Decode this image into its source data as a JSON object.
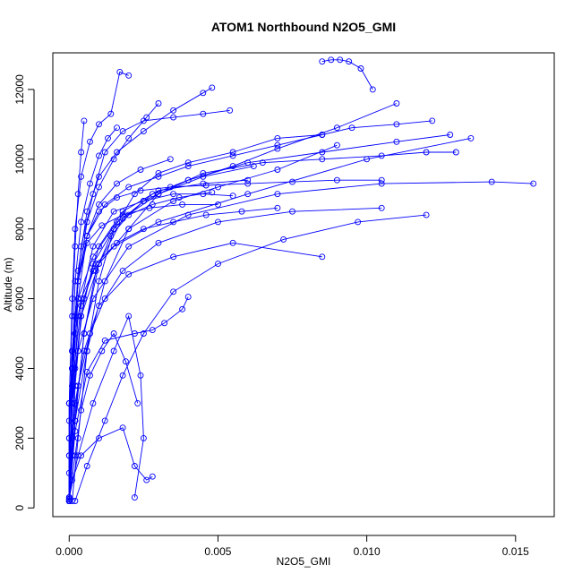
{
  "chart_data": {
    "type": "line",
    "title": "ATOM1 Northbound N2O5_GMI",
    "xlabel": "N2O5_GMI",
    "ylabel": "Altitude (m)",
    "xlim": [
      -0.00055,
      0.0163
    ],
    "ylim": [
      -250,
      13050
    ],
    "x_ticks": [
      0.0,
      0.005,
      0.01,
      0.015
    ],
    "x_tick_labels": [
      "0.000",
      "0.005",
      "0.010",
      "0.015"
    ],
    "y_ticks": [
      0,
      2000,
      4000,
      6000,
      8000,
      10000,
      12000
    ],
    "y_tick_labels": [
      "0",
      "2000",
      "4000",
      "6000",
      "8000",
      "10000",
      "12000"
    ],
    "grid": false,
    "legend": "none",
    "marker": "open-circle",
    "color": "#0000ff",
    "series": [
      {
        "x": [
          0.0,
          0.0,
          0.0,
          0.0,
          0.0001,
          0.0002,
          0.0004,
          0.0008,
          0.0015,
          0.003,
          0.006,
          0.01,
          0.0135
        ],
        "y": [
          200,
          1000,
          2000,
          3000,
          4000,
          5000,
          6000,
          6800,
          7500,
          8200,
          9000,
          10000,
          10600
        ]
      },
      {
        "x": [
          0.0,
          0.0,
          0.0001,
          0.0003,
          0.0008,
          0.002,
          0.004,
          0.007,
          0.0105,
          0.0142,
          0.0156
        ],
        "y": [
          300,
          1500,
          3000,
          4500,
          6000,
          7500,
          8400,
          9000,
          9300,
          9350,
          9300
        ]
      },
      {
        "x": [
          0.0,
          0.0001,
          0.0003,
          0.0007,
          0.0012,
          0.0018,
          0.003,
          0.005,
          0.0075,
          0.0105
        ],
        "y": [
          200,
          2000,
          3500,
          5000,
          6000,
          6800,
          7600,
          8200,
          8500,
          8600
        ]
      },
      {
        "x": [
          0.0002,
          0.0006,
          0.0012,
          0.0018,
          0.0025,
          0.0035,
          0.005,
          0.0072,
          0.0097,
          0.012
        ],
        "y": [
          200,
          1200,
          2500,
          3800,
          5000,
          6200,
          7000,
          7700,
          8200,
          8400
        ]
      },
      {
        "x": [
          0.0,
          0.0,
          0.0002,
          0.0005,
          0.001,
          0.002,
          0.0035,
          0.0055,
          0.0085
        ],
        "y": [
          200,
          1500,
          3000,
          4500,
          5800,
          6700,
          7200,
          7600,
          7200
        ]
      },
      {
        "x": [
          0.0,
          0.0001,
          0.0004,
          0.001,
          0.0018,
          0.0022,
          0.0026,
          0.0028
        ],
        "y": [
          300,
          800,
          1500,
          2000,
          2300,
          1200,
          800,
          900
        ]
      },
      {
        "x": [
          0.0,
          0.0003,
          0.0008,
          0.0015,
          0.002,
          0.0024,
          0.0025,
          0.0022
        ],
        "y": [
          300,
          1500,
          3000,
          4500,
          5500,
          3800,
          2000,
          300
        ]
      },
      {
        "x": [
          0.0,
          0.0002,
          0.0006,
          0.0012,
          0.0022,
          0.0028,
          0.0032,
          0.0038,
          0.004
        ],
        "y": [
          200,
          2200,
          3900,
          4800,
          5000,
          5100,
          5300,
          5700,
          6050
        ]
      },
      {
        "x": [
          0.0,
          0.0,
          0.0001,
          0.0003,
          0.0008,
          0.0016,
          0.003,
          0.0045,
          0.0062
        ],
        "y": [
          200,
          2500,
          4500,
          6000,
          7200,
          8200,
          9000,
          9500,
          9800
        ]
      },
      {
        "x": [
          0.0,
          0.0001,
          0.0004,
          0.001,
          0.002,
          0.0035,
          0.005,
          0.007,
          0.009
        ],
        "y": [
          300,
          3000,
          5500,
          7000,
          8000,
          8800,
          9200,
          9700,
          10400
        ]
      },
      {
        "x": [
          0.0,
          0.0002,
          0.0006,
          0.0012,
          0.002,
          0.003,
          0.0045,
          0.0065,
          0.0085,
          0.0105,
          0.012,
          0.013
        ],
        "y": [
          200,
          2500,
          4500,
          6500,
          8000,
          9000,
          9600,
          9900,
          10000,
          10100,
          10200,
          10200
        ]
      },
      {
        "x": [
          0.0001,
          0.0003,
          0.0006,
          0.001,
          0.0015,
          0.0022,
          0.003,
          0.004,
          0.0055,
          0.007,
          0.0085
        ],
        "y": [
          200,
          2000,
          4500,
          6500,
          8000,
          9000,
          9600,
          9900,
          10200,
          10600,
          10700
        ]
      },
      {
        "x": [
          0.0,
          0.0001,
          0.0002,
          0.0004,
          0.0008,
          0.0015,
          0.0025,
          0.004,
          0.006,
          0.0085,
          0.011,
          0.0128
        ],
        "y": [
          200,
          1500,
          3500,
          5500,
          7000,
          8000,
          8800,
          9400,
          9900,
          10200,
          10500,
          10700
        ]
      },
      {
        "x": [
          0.0,
          0.0001,
          0.0003,
          0.0008,
          0.0015,
          0.0025,
          0.0035,
          0.0045,
          0.0055
        ],
        "y": [
          250,
          3000,
          5500,
          7500,
          8500,
          8800,
          9000,
          9000,
          8950
        ]
      },
      {
        "x": [
          0.0,
          0.0002,
          0.0005,
          0.001,
          0.0018,
          0.0028,
          0.004,
          0.0055,
          0.007,
          0.009,
          0.011
        ],
        "y": [
          200,
          2500,
          5000,
          7000,
          8300,
          9000,
          9400,
          9800,
          10300,
          10900,
          11600
        ]
      },
      {
        "x": [
          0.0,
          0.0001,
          0.0003,
          0.0006,
          0.001,
          0.0015,
          0.002,
          0.0026,
          0.003
        ],
        "y": [
          200,
          4000,
          6500,
          8200,
          9200,
          10000,
          10600,
          11200,
          11600
        ]
      },
      {
        "x": [
          0.0,
          0.0001,
          0.0002,
          0.0004,
          0.0008,
          0.0012,
          0.0018,
          0.0025,
          0.0035,
          0.0045,
          0.0054
        ],
        "y": [
          200,
          3000,
          5500,
          7500,
          9000,
          10200,
          10800,
          11100,
          11200,
          11300,
          11400
        ]
      },
      {
        "x": [
          0.0,
          0.0,
          0.0001,
          0.0002,
          0.0004,
          0.0007,
          0.001,
          0.0014,
          0.0017,
          0.002
        ],
        "y": [
          200,
          3000,
          6000,
          8000,
          9500,
          10500,
          11000,
          11300,
          12500,
          12400
        ]
      },
      {
        "x": [
          0.0,
          0.0001,
          0.0003,
          0.0006,
          0.001,
          0.0016,
          0.0025,
          0.0035,
          0.0045,
          0.0048
        ],
        "y": [
          200,
          4000,
          6800,
          8500,
          9500,
          10200,
          10800,
          11400,
          11900,
          12050
        ]
      },
      {
        "x": [
          0.0,
          0.0001,
          0.0003,
          0.0006,
          0.0012,
          0.002,
          0.003,
          0.004,
          0.0055,
          0.007,
          0.0085,
          0.0095,
          0.011,
          0.0122
        ],
        "y": [
          250,
          3500,
          6000,
          7800,
          8700,
          9200,
          9500,
          9800,
          10100,
          10400,
          10700,
          10900,
          11000,
          11100
        ]
      },
      {
        "x": [
          0.0,
          0.0002,
          0.0005,
          0.0009,
          0.0014,
          0.002,
          0.0028,
          0.0037,
          0.0048
        ],
        "y": [
          200,
          2500,
          5000,
          6800,
          7800,
          8400,
          8700,
          8900,
          9050
        ]
      },
      {
        "x": [
          0.0,
          0.0001,
          0.0003,
          0.0006,
          0.0011,
          0.0018,
          0.0027,
          0.0038,
          0.005
        ],
        "y": [
          200,
          4500,
          6500,
          7600,
          8100,
          8400,
          8600,
          8700,
          8700
        ]
      },
      {
        "x": [
          0.0,
          0.0001,
          0.0002,
          0.0004,
          0.0007,
          0.001,
          0.0013,
          0.0016
        ],
        "y": [
          200,
          4000,
          6500,
          8200,
          9300,
          10100,
          10600,
          10900
        ]
      },
      {
        "x": [
          0.0,
          0.0,
          0.0001,
          0.0002,
          0.0003,
          0.0004,
          0.0005
        ],
        "y": [
          200,
          3000,
          5500,
          7500,
          9000,
          10200,
          11100
        ]
      },
      {
        "x": [
          0.0,
          0.0001,
          0.0002,
          0.0005,
          0.001,
          0.0018,
          0.003,
          0.0045,
          0.006
        ],
        "y": [
          250,
          2000,
          4000,
          6000,
          7500,
          8500,
          9100,
          9300,
          9400
        ]
      },
      {
        "x": [
          0.0,
          0.0001,
          0.0004,
          0.0009,
          0.0016,
          0.0025,
          0.0035,
          0.0046,
          0.0058,
          0.007
        ],
        "y": [
          200,
          3500,
          5800,
          7000,
          7600,
          8000,
          8200,
          8400,
          8500,
          8600
        ]
      },
      {
        "x": [
          0.0,
          0.0,
          0.0001,
          0.0003,
          0.0006,
          0.001,
          0.0016,
          0.0024,
          0.0034
        ],
        "y": [
          200,
          2000,
          4500,
          6500,
          7800,
          8700,
          9300,
          9700,
          10000
        ]
      },
      {
        "x": [
          0.0085,
          0.0088,
          0.0091,
          0.0094,
          0.0098,
          0.0102
        ],
        "y": [
          12800,
          12850,
          12850,
          12800,
          12600,
          12000
        ]
      },
      {
        "x": [
          0.0,
          0.0001,
          0.0003,
          0.0006,
          0.001,
          0.0016,
          0.0024,
          0.0034,
          0.0046,
          0.006,
          0.0075,
          0.009,
          0.0105
        ],
        "y": [
          200,
          4000,
          6500,
          7800,
          8500,
          8900,
          9100,
          9200,
          9250,
          9300,
          9350,
          9400,
          9400
        ]
      },
      {
        "x": [
          0.0,
          0.0002,
          0.0004,
          0.0007,
          0.0011,
          0.0015,
          0.0019,
          0.0023
        ],
        "y": [
          200,
          1500,
          2800,
          3800,
          4500,
          5000,
          4200,
          3000
        ]
      }
    ]
  }
}
